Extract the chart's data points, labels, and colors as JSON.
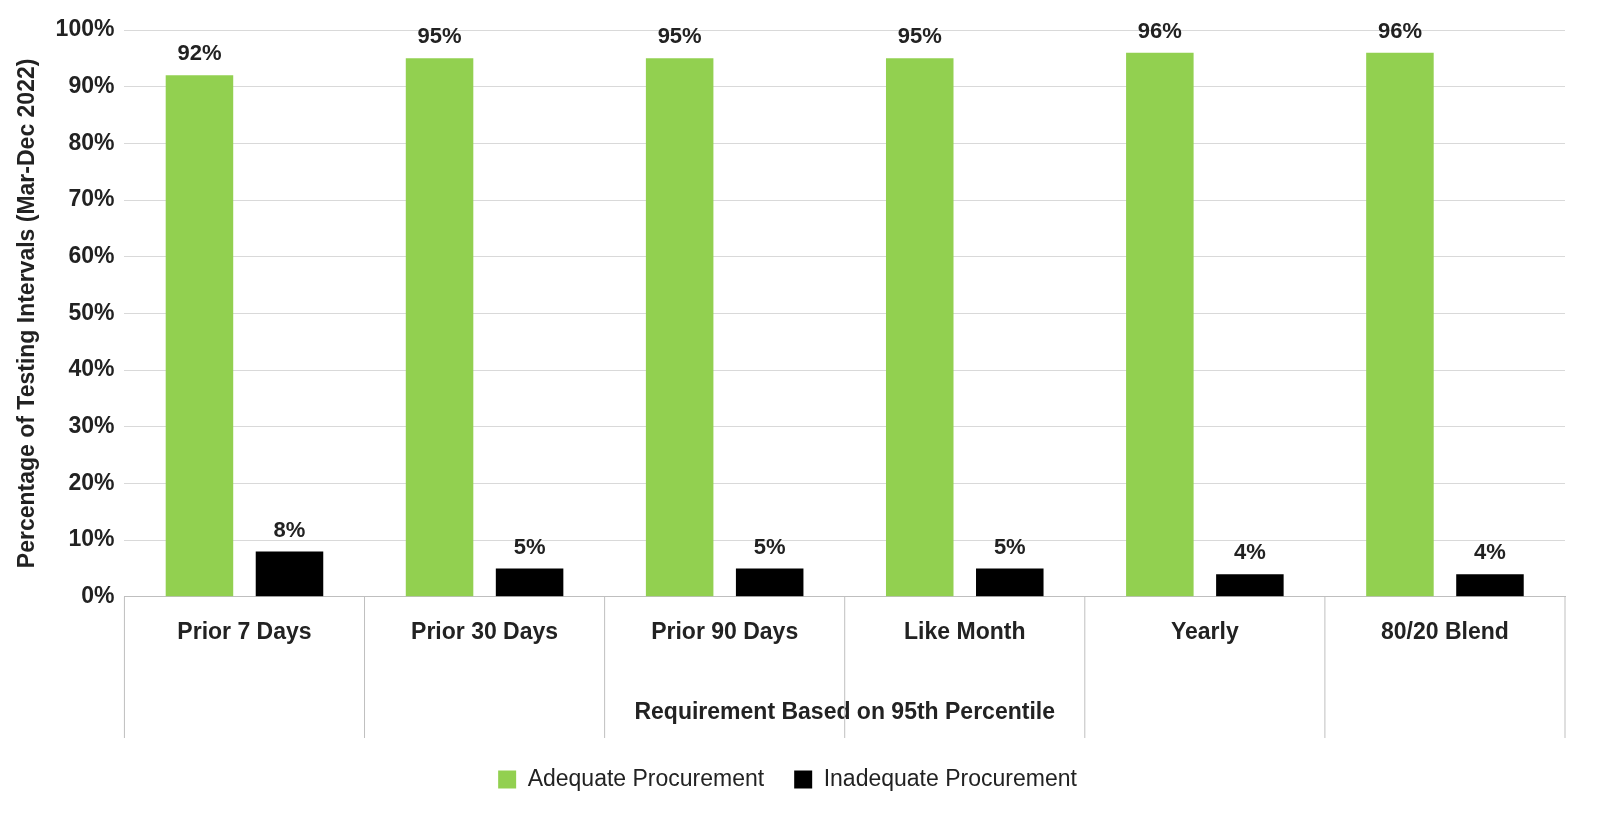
{
  "chart_data": {
    "type": "bar",
    "xlabel": "Requirement Based on 95th Percentile",
    "ylabel": "Percentage of Testing Intervals (Mar-Dec 2022)",
    "categories": [
      "Prior 7 Days",
      "Prior 30 Days",
      "Prior 90 Days",
      "Like Month",
      "Yearly",
      "80/20 Blend"
    ],
    "series": [
      {
        "name": "Adequate Procurement",
        "color": "#92d050",
        "values": [
          92,
          95,
          95,
          95,
          96,
          96
        ],
        "value_labels": [
          "92%",
          "95%",
          "95%",
          "95%",
          "96%",
          "96%"
        ]
      },
      {
        "name": "Inadequate Procurement",
        "color": "#000000",
        "values": [
          8,
          5,
          5,
          5,
          4,
          4
        ],
        "value_labels": [
          "8%",
          "5%",
          "5%",
          "5%",
          "4%",
          "4%"
        ]
      }
    ],
    "ylim": [
      0,
      100
    ],
    "yticks": [
      {
        "value": 0,
        "label": "0%"
      },
      {
        "value": 10,
        "label": "10%"
      },
      {
        "value": 20,
        "label": "20%"
      },
      {
        "value": 30,
        "label": "30%"
      },
      {
        "value": 40,
        "label": "40%"
      },
      {
        "value": 50,
        "label": "50%"
      },
      {
        "value": 60,
        "label": "60%"
      },
      {
        "value": 70,
        "label": "70%"
      },
      {
        "value": 80,
        "label": "80%"
      },
      {
        "value": 90,
        "label": "90%"
      },
      {
        "value": 100,
        "label": "100%"
      }
    ],
    "grid": "y",
    "legend": "bottom"
  }
}
